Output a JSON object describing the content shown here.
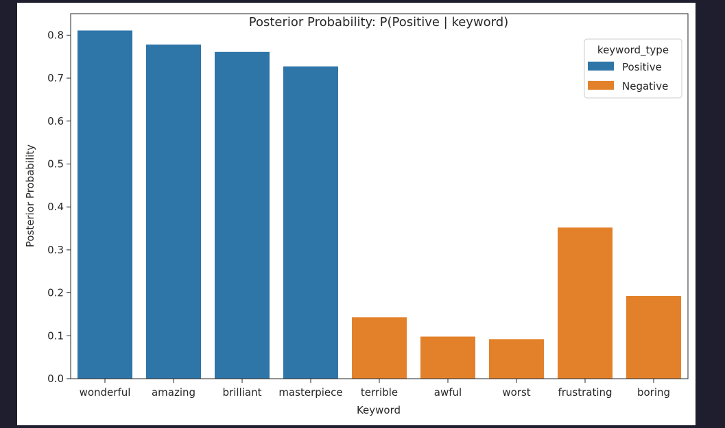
{
  "chart_data": {
    "type": "bar",
    "title": "Posterior Probability: P(Positive | keyword)",
    "xlabel": "Keyword",
    "ylabel": "Posterior Probability",
    "categories": [
      "wonderful",
      "amazing",
      "brilliant",
      "masterpiece",
      "terrible",
      "awful",
      "worst",
      "frustrating",
      "boring"
    ],
    "values": [
      0.811,
      0.778,
      0.761,
      0.727,
      0.143,
      0.098,
      0.092,
      0.352,
      0.193
    ],
    "groups": [
      "Positive",
      "Positive",
      "Positive",
      "Positive",
      "Negative",
      "Negative",
      "Negative",
      "Negative",
      "Negative"
    ],
    "ylim": [
      0,
      0.85
    ],
    "yticks": [
      "0.0",
      "0.1",
      "0.2",
      "0.3",
      "0.4",
      "0.5",
      "0.6",
      "0.7",
      "0.8"
    ],
    "grid": false,
    "legend": {
      "title": "keyword_type",
      "placement": "top-right",
      "entries": [
        {
          "name": "Positive",
          "color": "#2e75a8"
        },
        {
          "name": "Negative",
          "color": "#e3812b"
        }
      ]
    }
  }
}
